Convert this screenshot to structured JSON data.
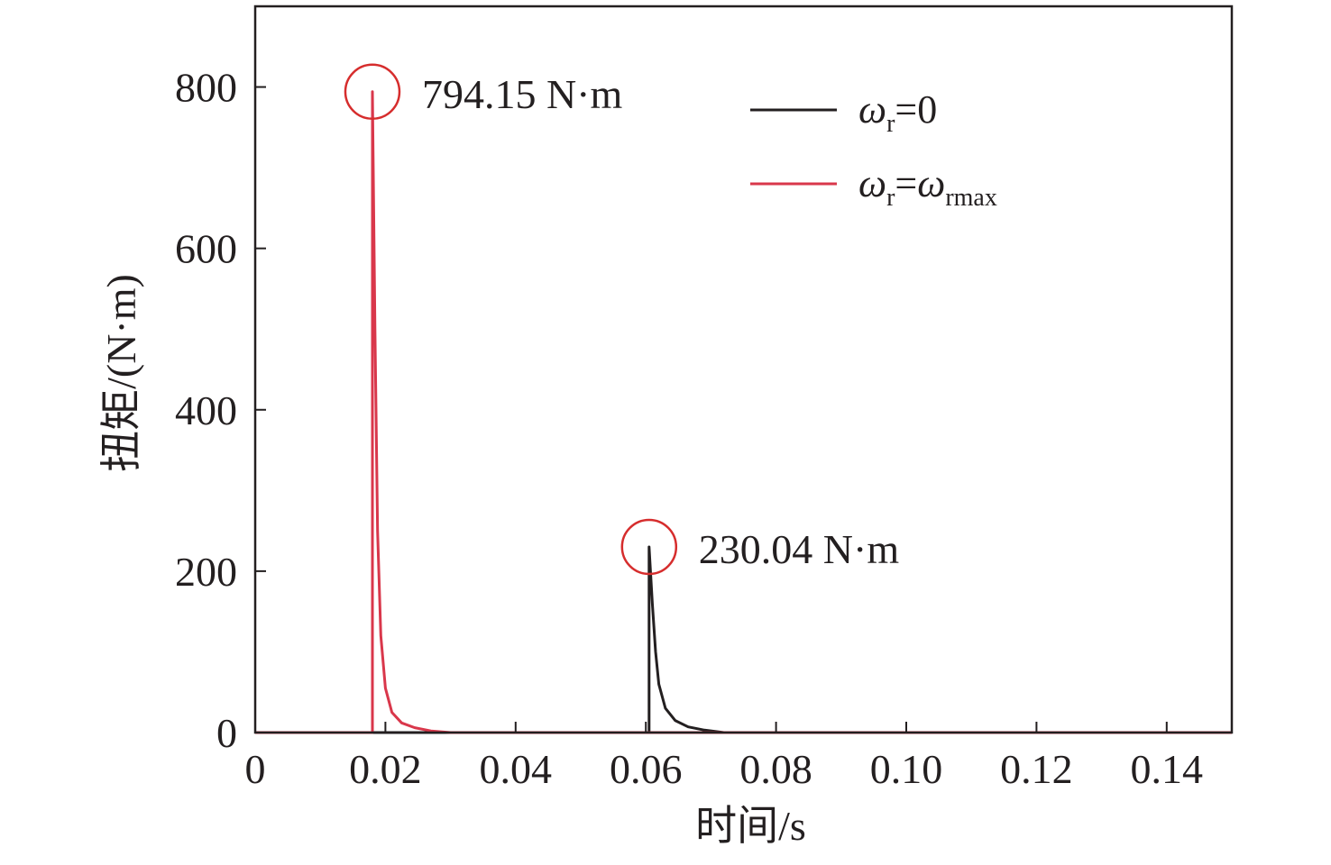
{
  "chart_data": {
    "type": "line",
    "xlabel": "时间/s",
    "ylabel": "扭矩/(N·m)",
    "xlim": [
      0,
      0.15
    ],
    "ylim": [
      0,
      900
    ],
    "x_ticks": [
      0,
      0.02,
      0.04,
      0.06,
      0.08,
      0.1,
      0.12,
      0.14
    ],
    "x_tick_labels": [
      "0",
      "0.02",
      "0.04",
      "0.06",
      "0.08",
      "0.10",
      "0.12",
      "0.14"
    ],
    "y_ticks": [
      0,
      200,
      400,
      600,
      800
    ],
    "y_tick_labels": [
      "0",
      "200",
      "400",
      "600",
      "800"
    ],
    "grid": false,
    "legend_position": "top-right",
    "series": [
      {
        "name": "ωr=0",
        "legend_base": "ω",
        "legend_sub": "r",
        "legend_rest": "=0",
        "legend_sub2": "",
        "color": "#231f20",
        "x": [
          0,
          0.0605,
          0.0605,
          0.061,
          0.0615,
          0.062,
          0.063,
          0.0645,
          0.0665,
          0.069,
          0.072,
          0.15
        ],
        "y": [
          0,
          0,
          230.04,
          160,
          100,
          60,
          30,
          15,
          7,
          3,
          0,
          0
        ]
      },
      {
        "name": "ωr=ωrmax",
        "legend_base": "ω",
        "legend_sub": "r",
        "legend_rest": "=ω",
        "legend_sub2": "rmax",
        "color": "#d9374b",
        "x": [
          0,
          0.018,
          0.018,
          0.0184,
          0.0188,
          0.0193,
          0.02,
          0.021,
          0.0225,
          0.0245,
          0.027,
          0.03,
          0.15
        ],
        "y": [
          0,
          0,
          794.15,
          500,
          250,
          120,
          55,
          25,
          12,
          6,
          2,
          0,
          0
        ]
      }
    ],
    "annotations": [
      {
        "text": "794.15 N·m",
        "x": 0.018,
        "y": 794.15,
        "circle_color": "#d62d2d"
      },
      {
        "text": "230.04 N·m",
        "x": 0.0605,
        "y": 230.04,
        "circle_color": "#d62d2d"
      }
    ]
  }
}
